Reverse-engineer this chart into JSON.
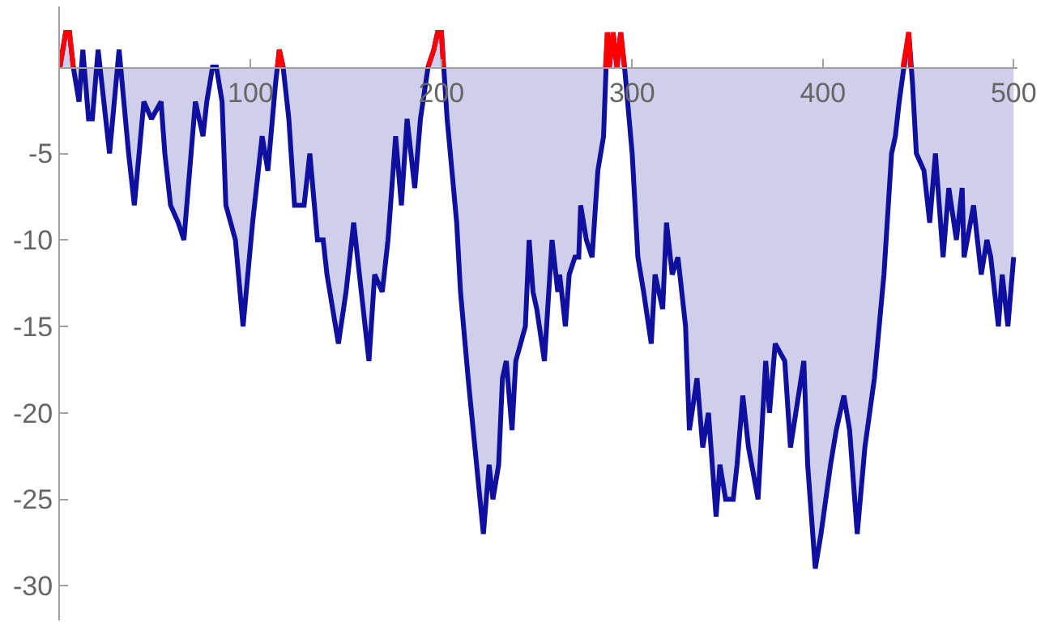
{
  "chart_data": {
    "type": "area",
    "xlim": [
      0,
      502
    ],
    "ylim": [
      -32,
      3.5
    ],
    "xticks": [
      100,
      200,
      300,
      400,
      500
    ],
    "yticks": [
      -30,
      -25,
      -20,
      -15,
      -10,
      -5
    ],
    "line_style": "solid",
    "marker": "none",
    "series": [
      {
        "color": "#0f0fa0",
        "x": [
          0,
          3,
          5,
          7,
          10,
          12,
          15,
          17,
          20,
          23,
          26,
          31,
          36,
          39,
          44,
          48,
          53,
          55,
          58,
          62,
          65,
          68,
          71,
          75,
          77,
          80,
          82,
          85,
          87,
          92,
          96,
          101,
          106,
          109,
          113,
          115,
          117,
          120,
          123,
          128,
          131,
          135,
          138,
          140,
          146,
          150,
          154,
          157,
          162,
          165,
          169,
          172,
          176,
          179,
          182,
          186,
          189,
          193,
          196,
          198,
          200,
          203,
          208,
          210,
          214,
          222,
          225,
          227,
          230,
          232,
          234,
          237,
          239,
          244,
          246,
          248,
          250,
          254,
          258,
          261,
          262,
          265,
          267,
          270,
          272,
          273,
          276,
          279,
          282,
          285,
          287,
          288,
          290,
          292,
          294,
          296,
          300,
          303,
          306,
          310,
          312,
          316,
          318,
          321,
          324,
          328,
          330,
          334,
          337,
          340,
          344,
          346,
          349,
          353,
          355,
          358,
          361,
          366,
          370,
          372,
          375,
          380,
          383,
          390,
          392,
          396,
          399,
          404,
          407,
          411,
          414,
          418,
          422,
          427,
          432,
          436,
          438,
          440,
          445,
          447,
          449,
          453,
          456,
          459,
          463,
          466,
          470,
          473,
          474,
          479,
          483,
          486,
          488,
          492,
          494,
          497,
          500
        ],
        "values": [
          0,
          2,
          2,
          0,
          -2,
          1,
          -3,
          -3,
          1,
          -2,
          -5,
          1,
          -5,
          -8,
          -2,
          -3,
          -2,
          -5,
          -8,
          -9,
          -10,
          -6,
          -2,
          -4,
          -2,
          0,
          0,
          -2,
          -8,
          -10,
          -15,
          -9,
          -4,
          -6,
          -1,
          1,
          0,
          -3,
          -8,
          -8,
          -5,
          -10,
          -10,
          -12,
          -16,
          -13,
          -9,
          -12,
          -17,
          -12,
          -13,
          -10,
          -4,
          -8,
          -3,
          -7,
          -3,
          0,
          1,
          2,
          2,
          -3,
          -9,
          -13,
          -18,
          -27,
          -23,
          -25,
          -23,
          -18,
          -17,
          -21,
          -17,
          -15,
          -10,
          -13,
          -14,
          -17,
          -10,
          -13,
          -12,
          -15,
          -12,
          -11,
          -11,
          -8,
          -10,
          -11,
          -6,
          -4,
          2,
          0,
          2,
          0,
          2,
          0,
          -5,
          -11,
          -13,
          -16,
          -12,
          -14,
          -9,
          -12,
          -11,
          -15,
          -21,
          -18,
          -22,
          -20,
          -26,
          -23,
          -25,
          -25,
          -23,
          -19,
          -22,
          -25,
          -17,
          -20,
          -16,
          -17,
          -22,
          -17,
          -23,
          -29,
          -27,
          -23,
          -21,
          -19,
          -21,
          -27,
          -22,
          -18,
          -12,
          -5,
          -4,
          -2,
          2,
          -1,
          -5,
          -6,
          -9,
          -5,
          -11,
          -7,
          -10,
          -7,
          -11,
          -8,
          -12,
          -10,
          -11,
          -15,
          -12,
          -15,
          -11
        ]
      },
      {
        "type": "line",
        "color": "#ff0000",
        "x": [
          0,
          3,
          5,
          7,
          null,
          114,
          115,
          117,
          null,
          193,
          196,
          198,
          200,
          201,
          null,
          286,
          287,
          288,
          290,
          292,
          294,
          296,
          null,
          442,
          445,
          446
        ],
        "values": [
          0,
          2,
          2,
          0,
          null,
          0,
          1,
          0,
          null,
          0,
          1,
          2,
          2,
          0,
          null,
          0,
          2,
          0,
          2,
          0,
          2,
          0,
          null,
          0,
          2,
          0
        ]
      }
    ]
  }
}
